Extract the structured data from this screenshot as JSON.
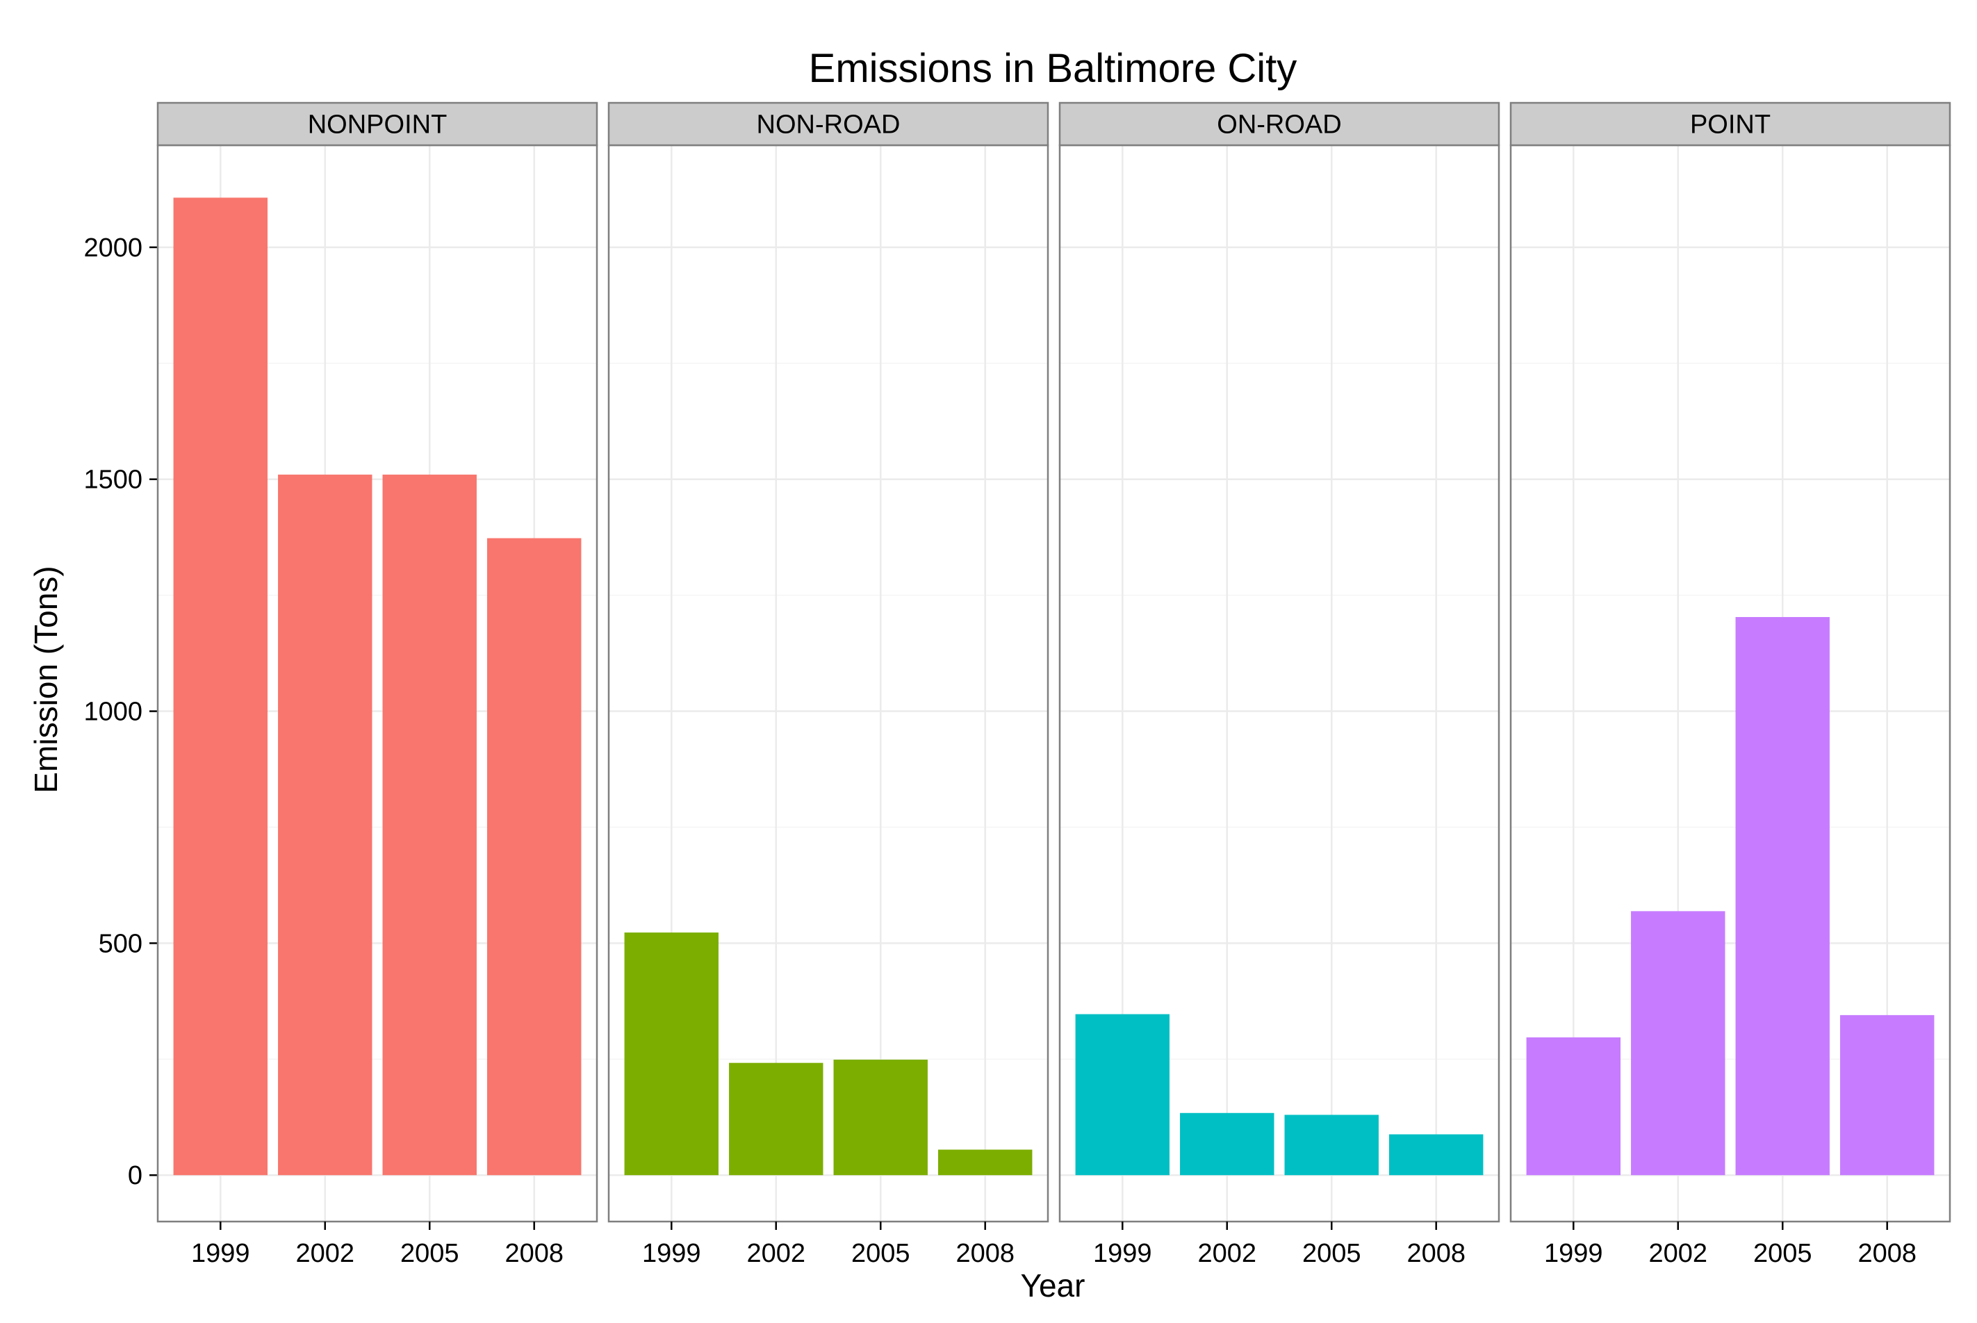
{
  "chart_data": {
    "type": "bar",
    "title": "Emissions in Baltimore City",
    "xlabel": "Year",
    "ylabel": "Emission (Tons)",
    "categories": [
      "1999",
      "2002",
      "2005",
      "2008"
    ],
    "ylim": [
      -100,
      2220
    ],
    "yticks": [
      0,
      500,
      1000,
      1500,
      2000
    ],
    "grid": true,
    "legend": "none",
    "facets": [
      {
        "name": "NONPOINT",
        "color": "#F8766D",
        "values": [
          2107,
          1510,
          1510,
          1373
        ]
      },
      {
        "name": "NON-ROAD",
        "color": "#7CAE00",
        "values": [
          523,
          242,
          249,
          55
        ]
      },
      {
        "name": "ON-ROAD",
        "color": "#00BFC4",
        "values": [
          347,
          134,
          130,
          88
        ]
      },
      {
        "name": "POINT",
        "color": "#C77CFF",
        "values": [
          297,
          569,
          1203,
          345
        ]
      }
    ]
  }
}
